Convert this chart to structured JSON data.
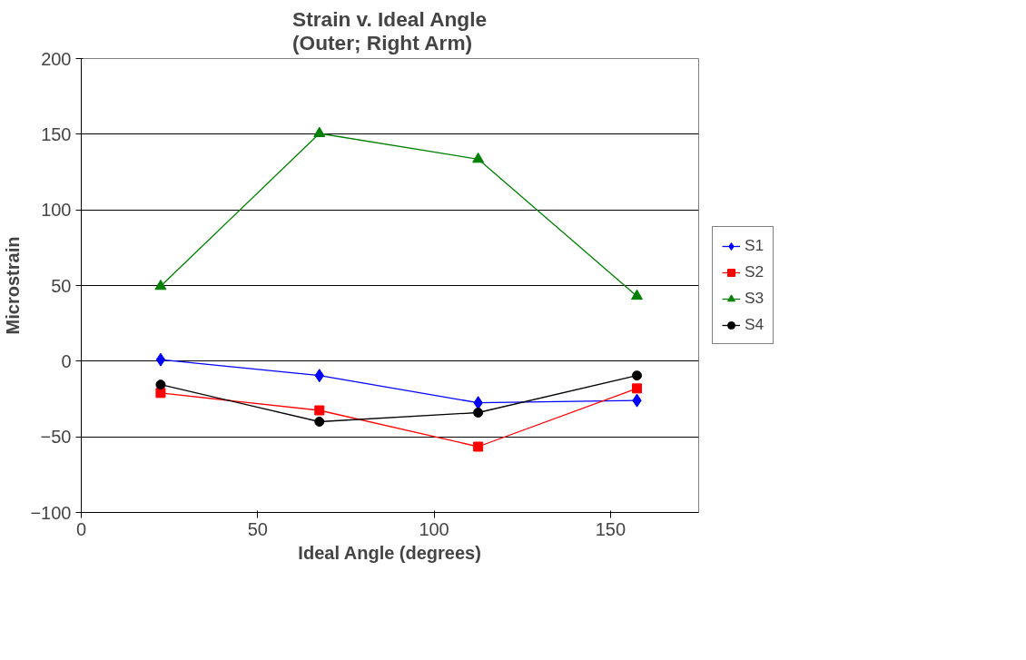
{
  "chart_data": {
    "type": "line",
    "title": "Strain v. Ideal Angle\n(Outer; Right Arm)",
    "xlabel": "Ideal Angle (degrees)",
    "ylabel": "Microstrain",
    "x": [
      22.5,
      67.5,
      112.5,
      157.5
    ],
    "xlim": [
      0,
      175
    ],
    "xticks": [
      0,
      50,
      100,
      150
    ],
    "ylim": [
      -100,
      200
    ],
    "yticks": [
      -100,
      -50,
      0,
      50,
      100,
      150,
      200
    ],
    "grid": "y",
    "legend": "right",
    "line_style": "solid",
    "series": [
      {
        "name": "S1",
        "color": "#0000ff",
        "marker": "diamond",
        "values": [
          1,
          -9.5,
          -27.5,
          -26
        ]
      },
      {
        "name": "S2",
        "color": "#ff0000",
        "marker": "square",
        "values": [
          -21,
          -32.5,
          -56.5,
          -18
        ]
      },
      {
        "name": "S3",
        "color": "#008000",
        "marker": "triangle",
        "values": [
          49.5,
          150.5,
          133.5,
          43
        ]
      },
      {
        "name": "S4",
        "color": "#000000",
        "marker": "circle",
        "values": [
          -15.5,
          -40,
          -34,
          -9.5
        ]
      }
    ]
  }
}
